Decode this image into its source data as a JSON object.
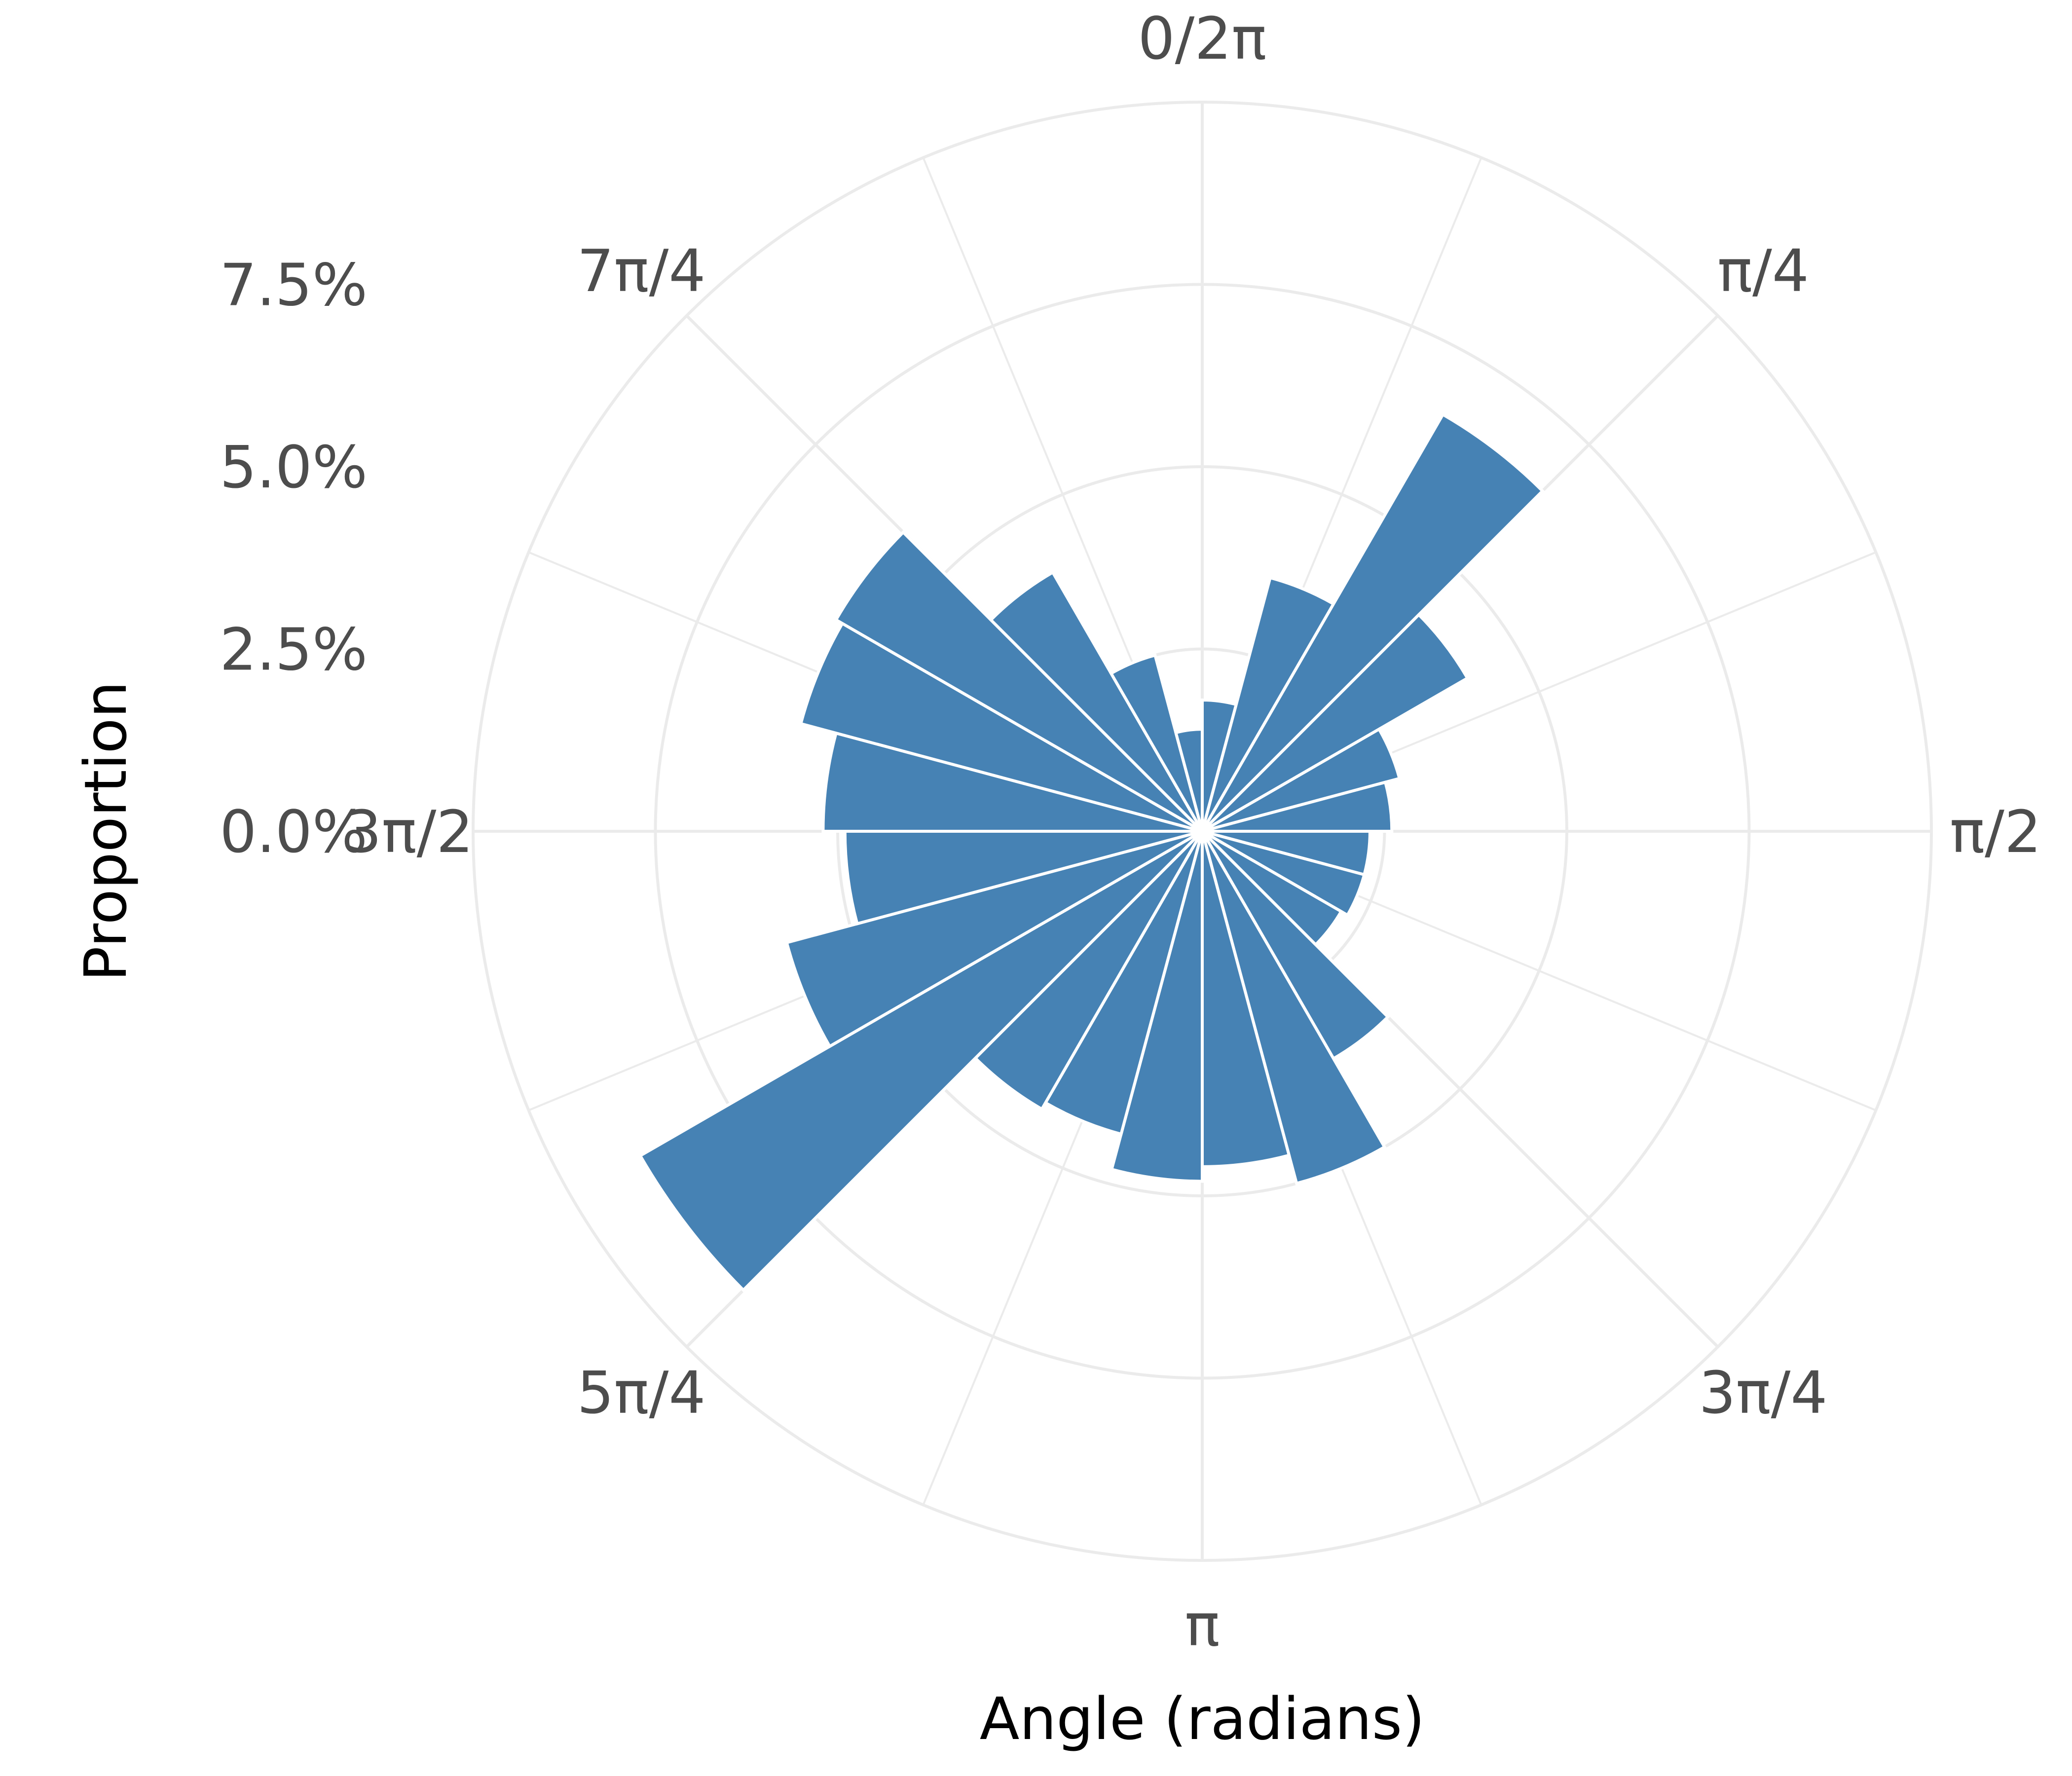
{
  "chart_data": {
    "type": "bar",
    "subtype": "polar-histogram",
    "xlabel": "Angle (radians)",
    "ylabel": "Proportion",
    "bin_width": 0.2618,
    "angle_ticks": [
      "0/2π",
      "π/4",
      "π/2",
      "3π/4",
      "π",
      "5π/4",
      "3π/2",
      "7π/4"
    ],
    "radial_ticks": [
      "0.0%",
      "2.5%",
      "5.0%",
      "7.5%"
    ],
    "radial_tick_values": [
      0,
      2.5,
      5.0,
      7.5
    ],
    "rlim": [
      0,
      10
    ],
    "grid": true,
    "bins": [
      {
        "start": 0.0,
        "value": 1.8
      },
      {
        "start": 0.2618,
        "value": 3.6
      },
      {
        "start": 0.5236,
        "value": 6.6
      },
      {
        "start": 0.7854,
        "value": 4.2
      },
      {
        "start": 1.0472,
        "value": 2.8
      },
      {
        "start": 1.309,
        "value": 2.6
      },
      {
        "start": 1.5708,
        "value": 2.3
      },
      {
        "start": 1.8326,
        "value": 2.3
      },
      {
        "start": 2.0944,
        "value": 2.2
      },
      {
        "start": 2.3562,
        "value": 3.6
      },
      {
        "start": 2.618,
        "value": 5.0
      },
      {
        "start": 2.8798,
        "value": 4.6
      },
      {
        "start": 3.1416,
        "value": 4.8
      },
      {
        "start": 3.4034,
        "value": 4.3
      },
      {
        "start": 3.6652,
        "value": 4.4
      },
      {
        "start": 3.927,
        "value": 8.9
      },
      {
        "start": 4.1888,
        "value": 5.9
      },
      {
        "start": 4.4506,
        "value": 4.9
      },
      {
        "start": 4.7124,
        "value": 5.2
      },
      {
        "start": 4.9742,
        "value": 5.7
      },
      {
        "start": 5.236,
        "value": 5.8
      },
      {
        "start": 5.4978,
        "value": 4.1
      },
      {
        "start": 5.7596,
        "value": 2.5
      },
      {
        "start": 6.0214,
        "value": 1.4
      }
    ]
  },
  "colors": {
    "bar": "#4682b4",
    "bar_edge": "#ffffff",
    "grid": "#ebebeb",
    "tick_text": "#4d4d4d",
    "title_text": "#000000"
  }
}
